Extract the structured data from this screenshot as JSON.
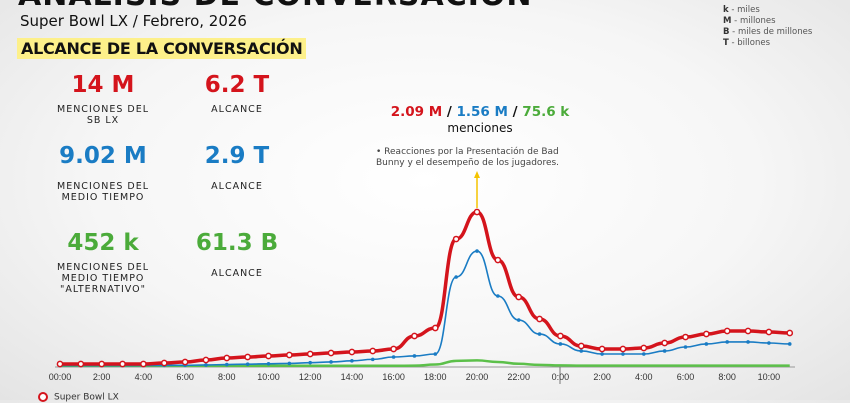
{
  "header": {
    "title": "ANÁLISIS DE CONVERSACIÓN",
    "subtitle": "Super Bowl LX / Febrero, 2026",
    "section": "ALCANCE DE LA CONVERSACIÓN"
  },
  "units_legend": [
    {
      "key": "k",
      "desc": " - miles"
    },
    {
      "key": "M",
      "desc": " - millones"
    },
    {
      "key": "B",
      "desc": " - miles de millones"
    },
    {
      "key": "T",
      "desc": " - billones"
    }
  ],
  "stats": [
    {
      "mentions": "14 M",
      "mentions_label": "MENCIONES DEL SB LX",
      "reach": "6.2 T",
      "reach_label": "ALCANCE"
    },
    {
      "mentions": "9.02 M",
      "mentions_label": "MENCIONES DEL MEDIO TIEMPO",
      "reach": "2.9 T",
      "reach_label": "ALCANCE"
    },
    {
      "mentions": "452 k",
      "mentions_label": "MENCIONES DEL MEDIO TIEMPO \"ALTERNATIVO\"",
      "reach": "61.3 B",
      "reach_label": "ALCANCE"
    }
  ],
  "peak": {
    "red": "2.09 M",
    "blue": "1.56 M",
    "green": "75.6 k",
    "sep": " / ",
    "label": "menciones",
    "note": "• Reacciones por la Presentación de Bad Bunny y el desempeño de los jugadores."
  },
  "colors": {
    "red": "#d4141c",
    "blue": "#1a7cc4",
    "green": "#5cc04a",
    "arrow": "#f5c400"
  },
  "chart_data": {
    "type": "line",
    "x_unit": "hour",
    "tick_labels": [
      "00:00",
      "2:00",
      "4:00",
      "6:00",
      "8:00",
      "10:00",
      "12:00",
      "14:00",
      "16:00",
      "18:00",
      "20:00",
      "22:00",
      "0:00",
      "2:00",
      "4:00",
      "6:00",
      "8:00",
      "10:00"
    ],
    "x": [
      "00",
      "01",
      "02",
      "03",
      "04",
      "05",
      "06",
      "07",
      "08",
      "09",
      "10",
      "11",
      "12",
      "13",
      "14",
      "15",
      "16",
      "17",
      "18",
      "19",
      "20",
      "21",
      "22",
      "23",
      "00",
      "01",
      "02",
      "03",
      "04",
      "05",
      "06",
      "07",
      "08",
      "09",
      "10",
      "11"
    ],
    "y_unit": "thousands of mentions",
    "ylim": [
      0,
      2200
    ],
    "series": [
      {
        "name": "Super Bowl LX",
        "color": "#d4141c",
        "values": [
          27,
          27,
          27,
          27,
          27,
          41,
          54,
          81,
          109,
          122,
          136,
          149,
          163,
          176,
          190,
          204,
          231,
          407,
          516,
          1723,
          2090,
          1438,
          936,
          638,
          407,
          271,
          231,
          231,
          244,
          312,
          393,
          434,
          475,
          475,
          461,
          448
        ]
      },
      {
        "name": "Medio Tiempo",
        "color": "#1a7cc4",
        "values": [
          5,
          5,
          5,
          6,
          7,
          8,
          10,
          14,
          20,
          25,
          30,
          35,
          45,
          55,
          70,
          90,
          122,
          136,
          163,
          1208,
          1560,
          950,
          624,
          434,
          299,
          204,
          163,
          163,
          163,
          204,
          258,
          299,
          326,
          326,
          312,
          299
        ]
      },
      {
        "name": "Medio Tiempo Alternativo",
        "color": "#5cc04a",
        "values": [
          3,
          3,
          3,
          3,
          3,
          3,
          3,
          3,
          3,
          3,
          3,
          3,
          3,
          3,
          3,
          3,
          3,
          5,
          20,
          70,
          75.6,
          55,
          30,
          15,
          8,
          5,
          5,
          5,
          5,
          5,
          5,
          5,
          5,
          5,
          5,
          5
        ]
      }
    ],
    "legend": [
      "Super Bowl LX"
    ],
    "legend_placement": "bottom-left",
    "grid": false
  }
}
